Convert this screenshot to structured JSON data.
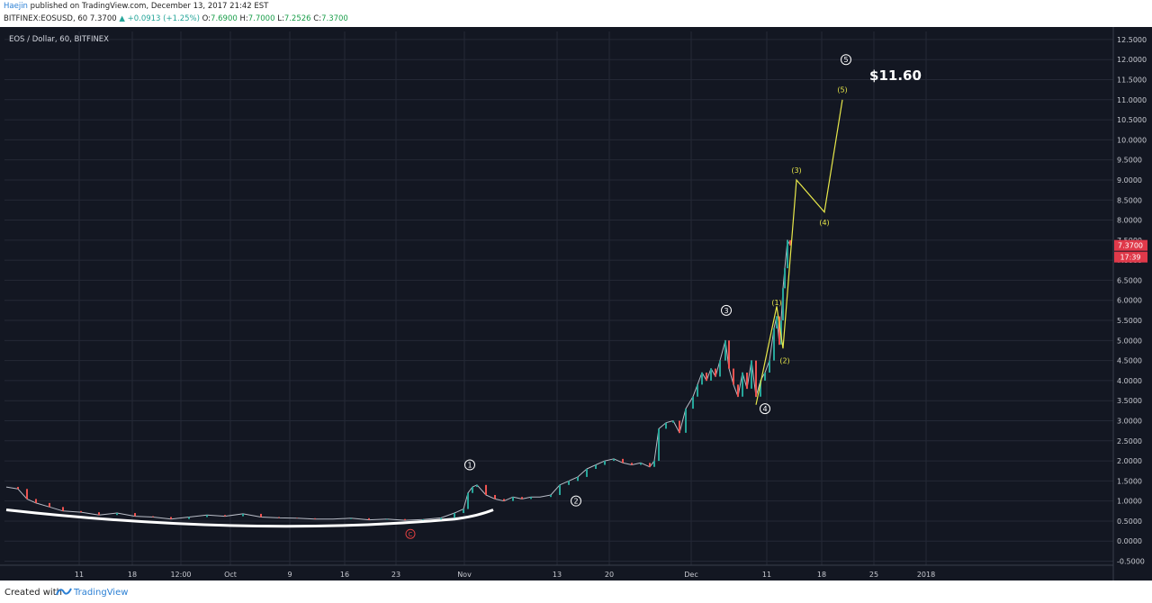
{
  "header": {
    "author": "Haejin",
    "published": " published on TradingView.com, December 13, 2017 21:42 EST",
    "symbol": "BITFINEX:EOSUSD, 60",
    "last": "7.3700",
    "change": "+0.0913 (+1.25%)",
    "o_label": "O:",
    "o_val": "7.6900",
    "h_label": "H:",
    "h_val": "7.7000",
    "l_label": "L:",
    "l_val": "7.2526",
    "c_label": "C:",
    "c_val": "7.3700"
  },
  "footer": {
    "created": "Created with",
    "brand": "TradingView"
  },
  "chart_data": {
    "type": "line",
    "title": "EOS / Dollar, 60, BITFINEX",
    "ylim": [
      -0.6,
      12.7
    ],
    "y_ticks": [
      -0.5,
      0,
      0.5,
      1,
      1.5,
      2,
      2.5,
      3,
      3.5,
      4,
      4.5,
      5,
      5.5,
      6,
      6.5,
      7,
      7.5,
      8,
      8.5,
      9,
      9.5,
      10,
      10.5,
      11,
      11.5,
      12,
      12.5
    ],
    "x_ticks": [
      {
        "label": "11",
        "x": 88
      },
      {
        "label": "18",
        "x": 147
      },
      {
        "label": "12:00",
        "x": 201
      },
      {
        "label": "Oct",
        "x": 256
      },
      {
        "label": "9",
        "x": 322
      },
      {
        "label": "16",
        "x": 383
      },
      {
        "label": "23",
        "x": 440
      },
      {
        "label": "Nov",
        "x": 516
      },
      {
        "label": "13",
        "x": 619
      },
      {
        "label": "20",
        "x": 677
      },
      {
        "label": "Dec",
        "x": 768
      },
      {
        "label": "11",
        "x": 852
      },
      {
        "label": "18",
        "x": 913
      },
      {
        "label": "25",
        "x": 971
      },
      {
        "label": "2018",
        "x": 1029
      }
    ],
    "price_series": {
      "name": "EOSUSD",
      "x": [
        7,
        20,
        30,
        40,
        55,
        70,
        90,
        110,
        130,
        150,
        170,
        190,
        210,
        230,
        250,
        270,
        290,
        310,
        330,
        350,
        370,
        390,
        410,
        430,
        450,
        470,
        490,
        505,
        515,
        520,
        525,
        530,
        540,
        550,
        560,
        570,
        580,
        590,
        600,
        612,
        622,
        632,
        642,
        652,
        662,
        672,
        682,
        692,
        702,
        712,
        722,
        727,
        732,
        740,
        748,
        755,
        762,
        770,
        775,
        780,
        785,
        790,
        795,
        800,
        806,
        810,
        815,
        820,
        825,
        830,
        835,
        840,
        845,
        850,
        855,
        860,
        863,
        866,
        868,
        870,
        872,
        875,
        878
      ],
      "y": [
        1.35,
        1.3,
        1.05,
        0.95,
        0.85,
        0.75,
        0.72,
        0.65,
        0.7,
        0.62,
        0.6,
        0.55,
        0.6,
        0.65,
        0.62,
        0.68,
        0.6,
        0.58,
        0.57,
        0.55,
        0.55,
        0.57,
        0.53,
        0.55,
        0.52,
        0.54,
        0.58,
        0.7,
        0.8,
        1.2,
        1.35,
        1.4,
        1.15,
        1.05,
        1.0,
        1.1,
        1.05,
        1.1,
        1.1,
        1.15,
        1.4,
        1.5,
        1.6,
        1.8,
        1.9,
        2.0,
        2.05,
        1.95,
        1.9,
        1.95,
        1.85,
        2.0,
        2.8,
        2.95,
        3.0,
        2.7,
        3.3,
        3.6,
        3.9,
        4.2,
        4.0,
        4.3,
        4.1,
        4.5,
        5.0,
        4.3,
        3.9,
        3.6,
        4.2,
        3.8,
        4.5,
        3.6,
        4.0,
        4.2,
        4.5,
        5.3,
        5.6,
        4.9,
        5.5,
        6.3,
        6.8,
        7.5,
        7.37
      ]
    },
    "wave_labels_white": [
      {
        "label": "1",
        "x": 522,
        "y": 1.9
      },
      {
        "label": "2",
        "x": 640,
        "y": 1.0
      },
      {
        "label": "3",
        "x": 807,
        "y": 5.75
      },
      {
        "label": "4",
        "x": 850,
        "y": 3.3
      },
      {
        "label": "5",
        "x": 940,
        "y": 12.0
      }
    ],
    "wave_label_c": {
      "label": "C",
      "x": 456,
      "y": 0.18
    },
    "projection": {
      "x": [
        840,
        863,
        870,
        885,
        916,
        936
      ],
      "y": [
        3.4,
        5.85,
        4.8,
        9.0,
        8.2,
        11.0
      ],
      "labels": [
        "(1)",
        "(2)",
        "(3)",
        "(4)",
        "(5)"
      ]
    },
    "target_label": "$11.60",
    "target_y": 11.6,
    "last_price_label": "7.3700",
    "last_price": 7.37,
    "countdown_label": "17:39",
    "colors": {
      "background": "#131722",
      "grid": "#242936",
      "text": "#c8cad1",
      "projection": "#e8e84a",
      "base_curve": "#ffffff",
      "price_badge": "#e0394a",
      "label_c": "#e04040"
    }
  }
}
